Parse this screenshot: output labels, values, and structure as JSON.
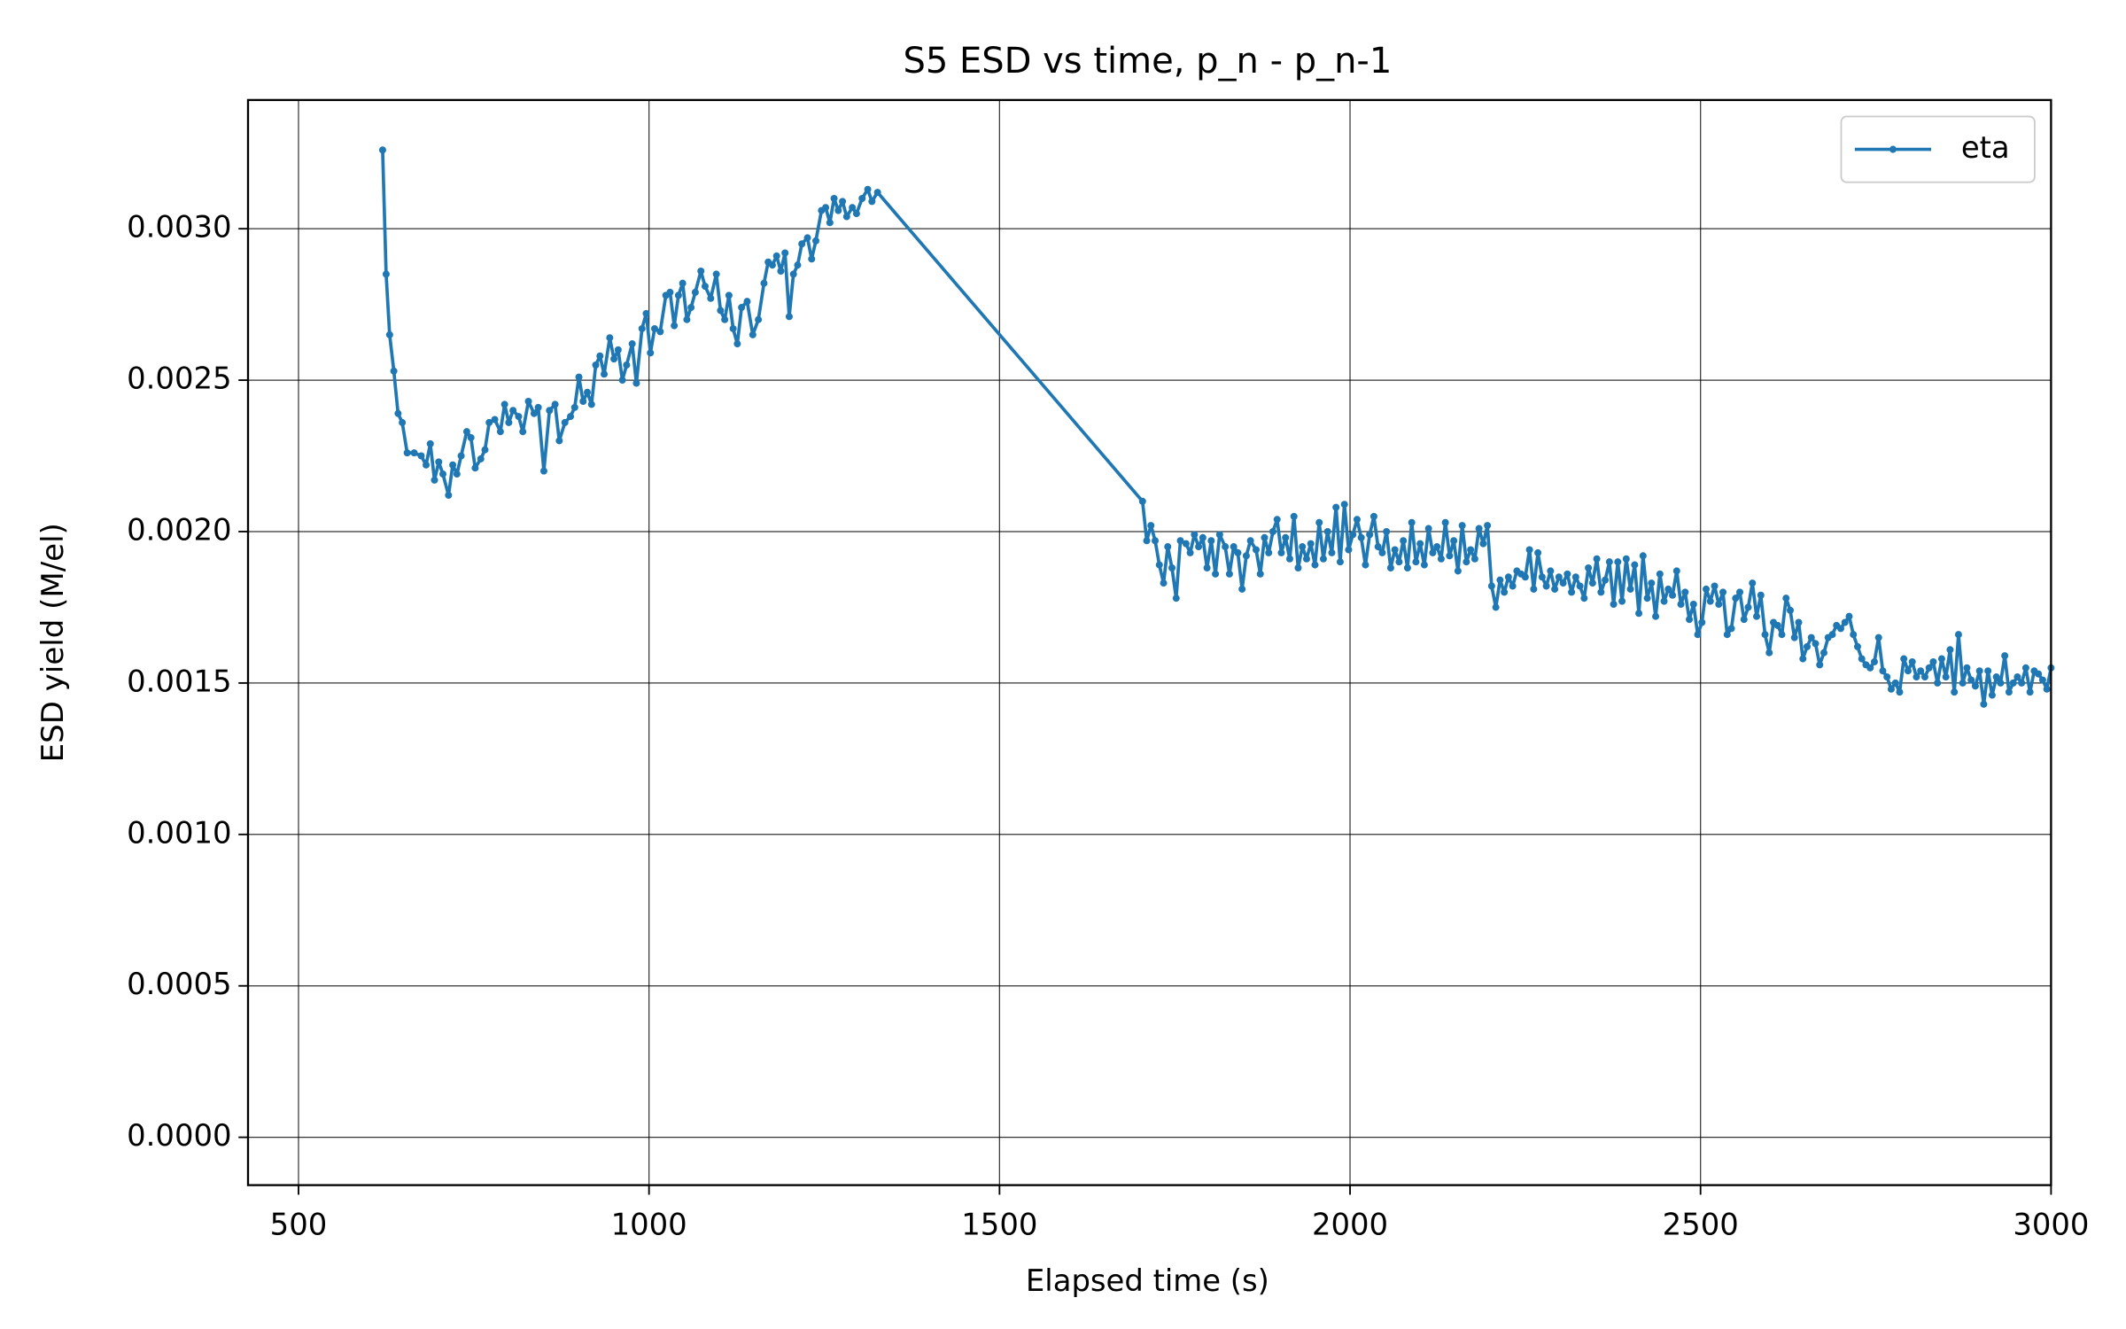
{
  "chart_data": {
    "type": "line",
    "title": "S5 ESD vs time, p_n - p_n-1",
    "x_label": "Elapsed time (s)",
    "y_label": "ESD yield (M/el)",
    "x": [
      620,
      625,
      630,
      636,
      642,
      648,
      655,
      665,
      675,
      682,
      688,
      694,
      700,
      706,
      714,
      720,
      726,
      732,
      740,
      746,
      752,
      760,
      766,
      772,
      780,
      788,
      794,
      800,
      806,
      814,
      820,
      828,
      836,
      842,
      850,
      858,
      866,
      872,
      880,
      888,
      894,
      900,
      906,
      912,
      918,
      924,
      930,
      936,
      944,
      950,
      956,
      962,
      968,
      976,
      982,
      990,
      996,
      1002,
      1008,
      1016,
      1024,
      1030,
      1036,
      1042,
      1048,
      1054,
      1060,
      1066,
      1074,
      1080,
      1088,
      1096,
      1102,
      1108,
      1114,
      1120,
      1126,
      1132,
      1140,
      1148,
      1156,
      1164,
      1170,
      1176,
      1182,
      1188,
      1194,
      1200,
      1206,
      1212,
      1218,
      1226,
      1232,
      1238,
      1246,
      1252,
      1258,
      1264,
      1270,
      1276,
      1282,
      1290,
      1296,
      1304,
      1312,
      1318,
      1326,
      1704,
      1710,
      1716,
      1722,
      1728,
      1734,
      1740,
      1746,
      1752,
      1758,
      1766,
      1772,
      1778,
      1784,
      1790,
      1796,
      1802,
      1808,
      1814,
      1822,
      1828,
      1834,
      1840,
      1846,
      1852,
      1858,
      1866,
      1872,
      1878,
      1884,
      1890,
      1896,
      1902,
      1908,
      1914,
      1920,
      1926,
      1932,
      1938,
      1944,
      1950,
      1956,
      1962,
      1968,
      1974,
      1980,
      1986,
      1992,
      1998,
      2004,
      2010,
      2016,
      2022,
      2028,
      2034,
      2040,
      2046,
      2052,
      2058,
      2064,
      2070,
      2076,
      2082,
      2088,
      2094,
      2100,
      2106,
      2112,
      2118,
      2124,
      2130,
      2136,
      2142,
      2148,
      2154,
      2160,
      2166,
      2172,
      2178,
      2184,
      2190,
      2196,
      2202,
      2208,
      2214,
      2220,
      2226,
      2232,
      2238,
      2244,
      2250,
      2256,
      2262,
      2268,
      2274,
      2280,
      2286,
      2292,
      2298,
      2304,
      2310,
      2316,
      2322,
      2328,
      2334,
      2340,
      2346,
      2352,
      2358,
      2364,
      2370,
      2376,
      2382,
      2388,
      2394,
      2400,
      2406,
      2412,
      2418,
      2424,
      2430,
      2436,
      2442,
      2448,
      2454,
      2460,
      2466,
      2472,
      2478,
      2484,
      2490,
      2496,
      2502,
      2508,
      2514,
      2520,
      2526,
      2532,
      2538,
      2544,
      2550,
      2556,
      2562,
      2568,
      2574,
      2580,
      2586,
      2592,
      2598,
      2604,
      2610,
      2616,
      2622,
      2628,
      2634,
      2640,
      2646,
      2652,
      2658,
      2664,
      2670,
      2676,
      2682,
      2688,
      2694,
      2700,
      2706,
      2712,
      2718,
      2724,
      2730,
      2736,
      2742,
      2748,
      2754,
      2760,
      2766,
      2772,
      2778,
      2784,
      2790,
      2796,
      2802,
      2808,
      2814,
      2820,
      2826,
      2832,
      2838,
      2844,
      2850,
      2856,
      2862,
      2868,
      2874,
      2880,
      2886,
      2892,
      2898,
      2904,
      2910,
      2916,
      2922,
      2928,
      2934,
      2940,
      2946,
      2952,
      2958,
      2964,
      2970,
      2976,
      2982,
      2988,
      2994,
      3000
    ],
    "series": [
      {
        "name": "eta",
        "color": "#1f77b4",
        "values": [
          0.00326,
          0.00285,
          0.00265,
          0.00253,
          0.00239,
          0.00236,
          0.00226,
          0.00226,
          0.00225,
          0.00222,
          0.00229,
          0.00217,
          0.00223,
          0.00219,
          0.00212,
          0.00222,
          0.00219,
          0.00225,
          0.00233,
          0.00231,
          0.00221,
          0.00224,
          0.00227,
          0.00236,
          0.00237,
          0.00233,
          0.00242,
          0.00236,
          0.0024,
          0.00238,
          0.00233,
          0.00243,
          0.00239,
          0.00241,
          0.0022,
          0.0024,
          0.00242,
          0.0023,
          0.00236,
          0.00238,
          0.00241,
          0.00251,
          0.00243,
          0.00246,
          0.00242,
          0.00255,
          0.00258,
          0.00252,
          0.00264,
          0.00257,
          0.0026,
          0.0025,
          0.00255,
          0.00262,
          0.00249,
          0.00267,
          0.00272,
          0.00259,
          0.00267,
          0.00266,
          0.00278,
          0.00279,
          0.00268,
          0.00278,
          0.00282,
          0.0027,
          0.00274,
          0.00279,
          0.00286,
          0.00281,
          0.00277,
          0.00285,
          0.00273,
          0.0027,
          0.00278,
          0.00267,
          0.00262,
          0.00274,
          0.00276,
          0.00265,
          0.0027,
          0.00282,
          0.00289,
          0.00288,
          0.00291,
          0.00286,
          0.00292,
          0.00271,
          0.00285,
          0.00288,
          0.00295,
          0.00297,
          0.0029,
          0.00296,
          0.00306,
          0.00307,
          0.00302,
          0.0031,
          0.00306,
          0.00309,
          0.00304,
          0.00307,
          0.00305,
          0.0031,
          0.00313,
          0.00309,
          0.00312,
          0.0021,
          0.00197,
          0.00202,
          0.00197,
          0.00189,
          0.00183,
          0.00195,
          0.00188,
          0.00178,
          0.00197,
          0.00196,
          0.00193,
          0.00199,
          0.00195,
          0.00198,
          0.00188,
          0.00197,
          0.00186,
          0.00199,
          0.00195,
          0.00186,
          0.00195,
          0.00193,
          0.00181,
          0.00192,
          0.00197,
          0.00194,
          0.00186,
          0.00198,
          0.00193,
          0.002,
          0.00204,
          0.00193,
          0.00198,
          0.00191,
          0.00205,
          0.00188,
          0.00195,
          0.00191,
          0.00196,
          0.00189,
          0.00203,
          0.00191,
          0.002,
          0.00193,
          0.00208,
          0.0019,
          0.00209,
          0.00194,
          0.00199,
          0.00204,
          0.00198,
          0.00189,
          0.00199,
          0.00205,
          0.00195,
          0.00193,
          0.002,
          0.00188,
          0.00194,
          0.0019,
          0.00197,
          0.00188,
          0.00203,
          0.0019,
          0.00196,
          0.00189,
          0.00201,
          0.00193,
          0.00195,
          0.00191,
          0.00203,
          0.00192,
          0.00197,
          0.00187,
          0.00202,
          0.0019,
          0.00194,
          0.00191,
          0.00201,
          0.00196,
          0.00202,
          0.00182,
          0.00175,
          0.00184,
          0.0018,
          0.00185,
          0.00182,
          0.00187,
          0.00186,
          0.00185,
          0.00194,
          0.00181,
          0.00193,
          0.00185,
          0.00182,
          0.00187,
          0.00181,
          0.00185,
          0.00183,
          0.00186,
          0.0018,
          0.00185,
          0.00182,
          0.00178,
          0.00188,
          0.00183,
          0.00191,
          0.0018,
          0.00184,
          0.0019,
          0.00176,
          0.0019,
          0.00177,
          0.00191,
          0.00181,
          0.00189,
          0.00173,
          0.00192,
          0.00178,
          0.00183,
          0.00172,
          0.00186,
          0.00177,
          0.00181,
          0.00179,
          0.00187,
          0.00176,
          0.0018,
          0.00171,
          0.00176,
          0.00166,
          0.0017,
          0.00181,
          0.00177,
          0.00182,
          0.00176,
          0.0018,
          0.00166,
          0.00168,
          0.00178,
          0.0018,
          0.00171,
          0.00175,
          0.00183,
          0.00172,
          0.00179,
          0.00166,
          0.0016,
          0.0017,
          0.00169,
          0.00166,
          0.00178,
          0.00174,
          0.00165,
          0.0017,
          0.00158,
          0.00162,
          0.00165,
          0.00163,
          0.00156,
          0.0016,
          0.00165,
          0.00166,
          0.00169,
          0.00168,
          0.0017,
          0.00172,
          0.00166,
          0.00162,
          0.00158,
          0.00156,
          0.00155,
          0.00157,
          0.00165,
          0.00154,
          0.00152,
          0.00148,
          0.0015,
          0.00147,
          0.00158,
          0.00154,
          0.00157,
          0.00152,
          0.00154,
          0.00152,
          0.00155,
          0.00157,
          0.0015,
          0.00158,
          0.00152,
          0.00161,
          0.00147,
          0.00166,
          0.0015,
          0.00155,
          0.00151,
          0.00149,
          0.00154,
          0.00143,
          0.00154,
          0.00146,
          0.00152,
          0.0015,
          0.00159,
          0.00147,
          0.0015,
          0.00152,
          0.0015,
          0.00155,
          0.00147,
          0.00154,
          0.00153,
          0.00151,
          0.00148,
          0.00155
        ]
      }
    ],
    "xlim": [
      428,
      3000
    ],
    "ylim": [
      -0.000158,
      0.003425
    ],
    "xticks": [
      500,
      1000,
      1500,
      2000,
      2500,
      3000
    ],
    "yticks": [
      {
        "value": 0,
        "label": "0.0000"
      },
      {
        "value": 0.0005,
        "label": "0.0005"
      },
      {
        "value": 0.001,
        "label": "0.0010"
      },
      {
        "value": 0.0015,
        "label": "0.0015"
      },
      {
        "value": 0.002,
        "label": "0.0020"
      },
      {
        "value": 0.0025,
        "label": "0.0025"
      },
      {
        "value": 0.003,
        "label": "0.0030"
      }
    ],
    "grid": true,
    "legend": "upper right"
  }
}
